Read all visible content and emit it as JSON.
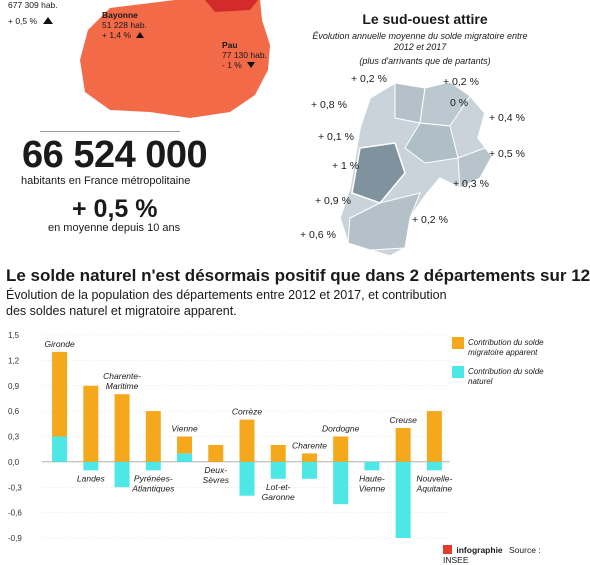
{
  "top_map": {
    "cities": [
      {
        "name": "",
        "pop": "677 309 hab.",
        "change": "+ 0,5 %",
        "arrow": "up"
      },
      {
        "name": "Bayonne",
        "pop": "51 228 hab.",
        "change": "+ 1,4 %",
        "arrow": "up"
      },
      {
        "name": "Pau",
        "pop": "77 130 hab.",
        "change": "- 1 %",
        "arrow": "down"
      }
    ],
    "colors": {
      "region": "#f26a48",
      "dark": "#d32a2a"
    }
  },
  "stats": {
    "population": "66 524 000",
    "population_label": "habitants en France métropolitaine",
    "growth": "+ 0,5 %",
    "growth_label": "en moyenne depuis 10 ans"
  },
  "southwest": {
    "title": "Le sud-ouest attire",
    "subtitle": "Évolution annuelle moyenne du solde migratoire entre 2012 et 2017",
    "note": "(plus d'arrivants que de partants)",
    "labels": [
      "+ 0,2 %",
      "+ 0,2 %",
      "+ 0,8 %",
      "0 %",
      "+ 0,4 %",
      "+ 0,1 %",
      "+ 0,5 %",
      "+ 1 %",
      "+ 0,3 %",
      "+ 0,9 %",
      "+ 0,2 %",
      "+ 0,6 %"
    ]
  },
  "headline": {
    "title": "Le solde naturel n'est désormais positif que dans 2 départements sur 12",
    "subtitle_line1": "Évolution de la population des départements entre 2012 et 2017, et contribution",
    "subtitle_line2": "des soldes naturel et migratoire apparent."
  },
  "chart_data": {
    "type": "bar",
    "stacked": true,
    "categories": [
      "Gironde",
      "Landes",
      "Charente-Maritime",
      "Pyrénées-Atlantiques",
      "Vienne",
      "Deux-Sèvres",
      "Corrèze",
      "Lot-et-Garonne",
      "Charente",
      "Dordogne",
      "Haute-Vienne",
      "Creuse",
      "Nouvelle-Aquitaine"
    ],
    "category_lines": [
      [
        "Gironde"
      ],
      [
        "Landes"
      ],
      [
        "Charente-",
        "Maritime"
      ],
      [
        "Pyrénées-",
        "Atlantiques"
      ],
      [
        "Vienne"
      ],
      [
        "Deux-",
        "Sèvres"
      ],
      [
        "Corrèze"
      ],
      [
        "Lot-et-",
        "Garonne"
      ],
      [
        "Charente"
      ],
      [
        "Dordogne"
      ],
      [
        "Haute-",
        "Vienne"
      ],
      [
        "Creuse"
      ],
      [
        "Nouvelle-",
        "Aquitaine"
      ]
    ],
    "series": [
      {
        "name": "Contribution du solde migratoire apparent",
        "color": "#f5a81c",
        "values": [
          1.0,
          0.9,
          0.8,
          0.6,
          0.2,
          0.2,
          0.5,
          0.2,
          0.1,
          0.3,
          0.0,
          0.4,
          0.6
        ]
      },
      {
        "name": "Contribution du solde naturel",
        "color": "#4de8e6",
        "values": [
          0.3,
          -0.1,
          -0.3,
          -0.1,
          0.1,
          0.0,
          -0.4,
          -0.2,
          -0.2,
          -0.5,
          -0.1,
          -0.9,
          -0.1
        ]
      }
    ],
    "legend_lines": [
      [
        "Contribution du solde",
        "migratoire apparent"
      ],
      [
        "Contribution du solde",
        "naturel"
      ]
    ],
    "ylim": [
      -0.9,
      1.5
    ],
    "yticks": [
      "1,5",
      "1,2",
      "0,9",
      "0,6",
      "0,3",
      "0,0",
      "-0,3",
      "-0,6",
      "-0,9"
    ],
    "ytick_values": [
      1.5,
      1.2,
      0.9,
      0.6,
      0.3,
      0.0,
      -0.3,
      -0.6,
      -0.9
    ],
    "xlabel": "",
    "ylabel": "",
    "legend_position": "top-right",
    "grid": true
  },
  "footer": {
    "brand": "infographie",
    "source": "Source : INSEE"
  }
}
